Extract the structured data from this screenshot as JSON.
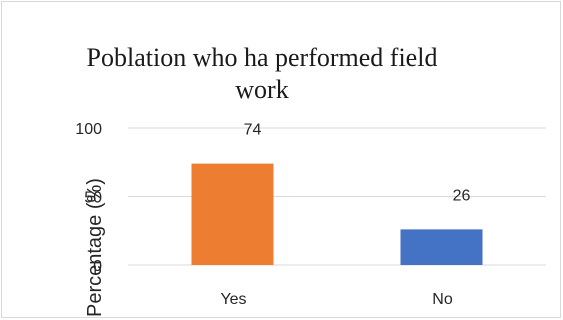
{
  "chart_data": {
    "type": "bar",
    "title": "Poblation who ha performed field work",
    "ylabel": "Percentage (%)",
    "xlabel": "",
    "categories": [
      "Yes",
      "No"
    ],
    "values": [
      74,
      26
    ],
    "data_labels": [
      "74",
      "26"
    ],
    "ylim": [
      0,
      100
    ],
    "yticks": [
      {
        "value": 0,
        "label": "0"
      },
      {
        "value": 50,
        "label": "50"
      },
      {
        "value": 100,
        "label": "100"
      }
    ],
    "bar_colors": [
      "#ed7d31",
      "#4472c4"
    ],
    "gridlines": true,
    "legend": "none"
  }
}
